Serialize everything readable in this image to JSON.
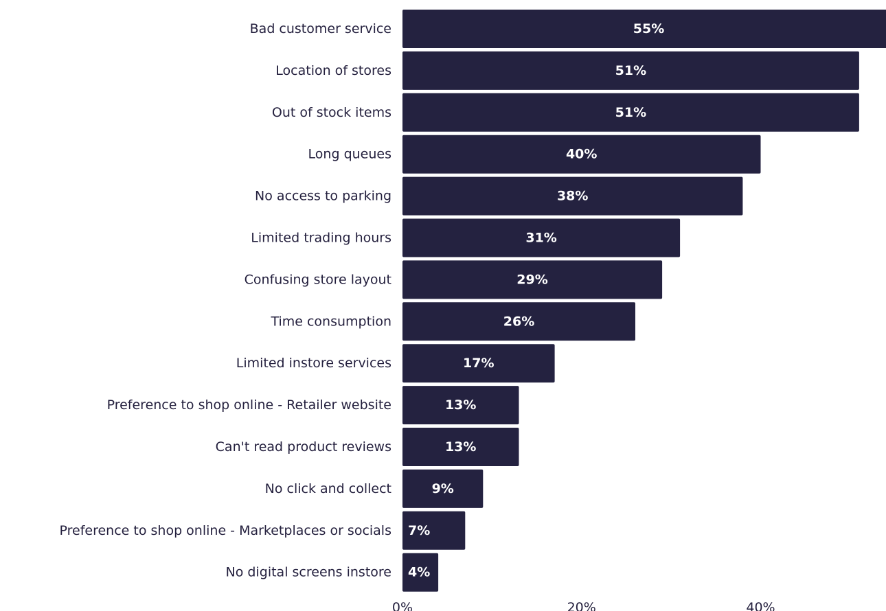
{
  "chart_data": {
    "type": "bar",
    "orientation": "horizontal",
    "categories": [
      "Bad customer service",
      "Location of stores",
      "Out of stock items",
      "Long queues",
      "No access to parking",
      "Limited trading hours",
      "Confusing store layout",
      "Time consumption",
      "Limited instore services",
      "Preference to shop online - Retailer website",
      "Can't read product reviews",
      "No click and collect",
      "Preference to shop online - Marketplaces or socials",
      "No digital screens instore"
    ],
    "values": [
      55,
      51,
      51,
      40,
      38,
      31,
      29,
      26,
      17,
      13,
      13,
      9,
      7,
      4
    ],
    "value_labels": [
      "55%",
      "51%",
      "51%",
      "40%",
      "38%",
      "31%",
      "29%",
      "26%",
      "17%",
      "13%",
      "13%",
      "9%",
      "7%",
      "4%"
    ],
    "x_ticks": [
      0,
      20,
      40
    ],
    "x_tick_labels": [
      "0%",
      "20%",
      "40%"
    ],
    "xlim": [
      0,
      54
    ],
    "grid": false,
    "bar_color": "#242240",
    "title": "",
    "xlabel": "",
    "ylabel": ""
  }
}
